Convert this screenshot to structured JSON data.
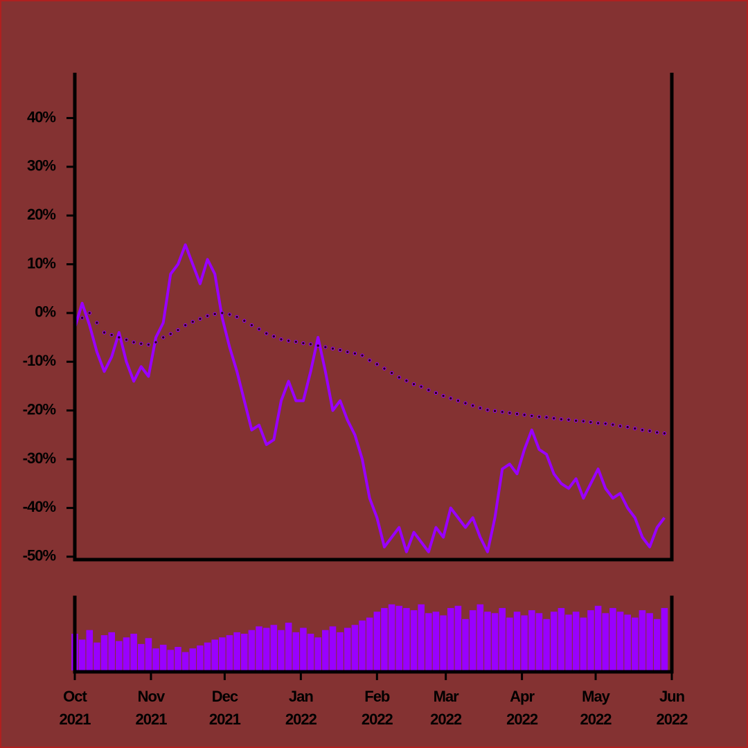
{
  "chart_data": {
    "type": "line",
    "x": [
      0,
      3,
      6,
      9,
      12,
      15,
      18,
      21,
      24,
      27,
      30,
      33,
      36,
      39,
      42,
      45,
      48,
      51,
      54,
      57,
      60,
      63,
      66,
      69,
      72,
      75,
      78,
      81,
      84,
      87,
      90,
      93,
      96,
      99,
      102,
      105,
      108,
      111,
      114,
      117,
      120,
      123,
      126,
      129,
      132,
      135,
      138,
      141,
      144,
      147,
      150,
      153,
      156,
      159,
      162,
      165,
      168,
      171,
      174,
      177,
      180,
      183,
      186,
      189,
      192,
      195,
      198,
      201,
      204,
      207,
      210,
      213,
      216,
      219,
      222,
      225,
      228,
      231,
      234,
      237,
      240
    ],
    "xlim": [
      0,
      243
    ],
    "xticks": [
      {
        "value": 0,
        "label": [
          "Oct",
          "2021"
        ]
      },
      {
        "value": 31,
        "label": [
          "Nov",
          "2021"
        ]
      },
      {
        "value": 61,
        "label": [
          "Dec",
          "2021"
        ]
      },
      {
        "value": 92,
        "label": [
          "Jan",
          "2022"
        ]
      },
      {
        "value": 123,
        "label": [
          "Feb",
          "2022"
        ]
      },
      {
        "value": 151,
        "label": [
          "Mar",
          "2022"
        ]
      },
      {
        "value": 182,
        "label": [
          "Apr",
          "2022"
        ]
      },
      {
        "value": 212,
        "label": [
          "May",
          "2022"
        ]
      },
      {
        "value": 243,
        "label": [
          "Jun",
          "2022"
        ]
      }
    ],
    "ylim": [
      -50.6,
      49.3
    ],
    "yticks": [
      {
        "value": -50,
        "label": "-50%"
      },
      {
        "value": -40,
        "label": "-40%"
      },
      {
        "value": -30,
        "label": "-30%"
      },
      {
        "value": -20,
        "label": "-20%"
      },
      {
        "value": -10,
        "label": "-10%"
      },
      {
        "value": 0,
        "label": "0%"
      },
      {
        "value": 10,
        "label": "10%"
      },
      {
        "value": 20,
        "label": "20%"
      },
      {
        "value": 30,
        "label": "30%"
      },
      {
        "value": 40,
        "label": "40%"
      }
    ],
    "series": [
      {
        "color": "#9900ff",
        "style": "line",
        "values": [
          -3,
          2,
          -2.5,
          -8,
          -12,
          -9,
          -4,
          -10,
          -14,
          -11,
          -13,
          -5,
          -2,
          8,
          10,
          14,
          10,
          6,
          11,
          8,
          -1,
          -7,
          -12,
          -18,
          -24,
          -23,
          -27,
          -26,
          -18,
          -14,
          -18,
          -18,
          -12,
          -5,
          -12,
          -20,
          -18,
          -22,
          -25,
          -30,
          -38,
          -42,
          -48,
          -46,
          -44,
          -49,
          -45,
          -47,
          -49,
          -44,
          -46,
          -40,
          -42,
          -44,
          -42,
          -46,
          -49,
          -42,
          -32,
          -31,
          -33,
          -28,
          -24,
          -28,
          -29,
          -33,
          -35,
          -36,
          -34,
          -38,
          -35,
          -32,
          -36,
          -38,
          -37,
          -40,
          -42,
          -46,
          -48,
          -44,
          -42
        ]
      },
      {
        "color": "#9900ff",
        "style": "dots",
        "values": [
          -2,
          -1,
          0,
          -2,
          -4,
          -4.5,
          -5,
          -5.5,
          -6,
          -6.3,
          -6.5,
          -6,
          -5,
          -4.3,
          -3.5,
          -2.5,
          -1.8,
          -1.2,
          -0.6,
          -0.2,
          0,
          -0.3,
          -0.8,
          -1.6,
          -2.5,
          -3.3,
          -4.2,
          -4.8,
          -5.4,
          -5.7,
          -5.9,
          -6.2,
          -6.4,
          -6.7,
          -7,
          -7.3,
          -7.6,
          -8,
          -8.3,
          -8.7,
          -9.7,
          -10.5,
          -11.4,
          -12.3,
          -13.2,
          -13.9,
          -14.6,
          -15.1,
          -15.8,
          -16.4,
          -17,
          -17.5,
          -18,
          -18.5,
          -19,
          -19.5,
          -19.9,
          -20.1,
          -20.3,
          -20.5,
          -20.7,
          -20.9,
          -21.1,
          -21.3,
          -21.4,
          -21.6,
          -21.8,
          -21.9,
          -22.1,
          -22.2,
          -22.4,
          -22.6,
          -22.7,
          -22.9,
          -23.2,
          -23.4,
          -23.7,
          -24,
          -24.2,
          -24.5,
          -24.7
        ]
      }
    ],
    "volume": {
      "color": "#9900ff",
      "ylim": [
        0,
        100
      ],
      "values": [
        50,
        42,
        55,
        38,
        48,
        52,
        40,
        45,
        50,
        36,
        44,
        30,
        35,
        28,
        32,
        25,
        30,
        34,
        38,
        42,
        45,
        48,
        52,
        50,
        55,
        60,
        58,
        62,
        55,
        65,
        52,
        58,
        50,
        45,
        55,
        60,
        52,
        58,
        62,
        68,
        72,
        80,
        85,
        90,
        88,
        85,
        82,
        90,
        78,
        80,
        75,
        85,
        88,
        70,
        82,
        90,
        80,
        78,
        85,
        72,
        80,
        75,
        82,
        78,
        70,
        80,
        85,
        76,
        80,
        72,
        82,
        88,
        78,
        85,
        80,
        76,
        72,
        82,
        78,
        70,
        85
      ]
    }
  }
}
